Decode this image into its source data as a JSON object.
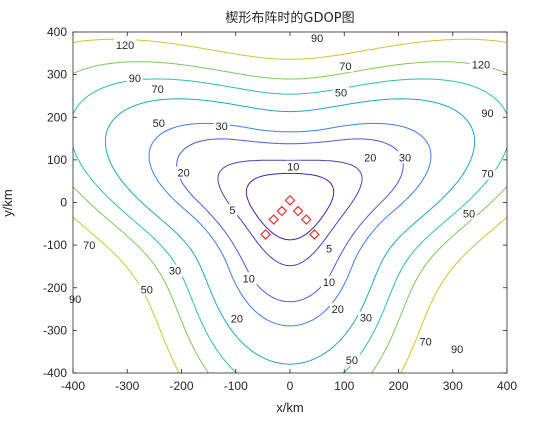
{
  "chart_data": {
    "type": "contour",
    "title": "楔形布阵时的GDOP图",
    "xlabel": "x/km",
    "ylabel": "y/km",
    "xlim": [
      -400,
      400
    ],
    "ylim": [
      -400,
      400
    ],
    "x_ticks": [
      "-400",
      "-300",
      "-200",
      "-100",
      "0",
      "100",
      "200",
      "300",
      "400"
    ],
    "y_ticks": [
      "-400",
      "-300",
      "-200",
      "-100",
      "0",
      "100",
      "200",
      "300",
      "400"
    ],
    "grid": false,
    "legend": "none",
    "levels": [
      5,
      10,
      20,
      30,
      50,
      70,
      90,
      120
    ],
    "level_colors": {
      "5": "#3d24a8",
      "10": "#4a3fc4",
      "20": "#4b5bdb",
      "30": "#3c7fe6",
      "50": "#1fa6c8",
      "70": "#2cc39c",
      "90": "#7cc95a",
      "120": "#c8c830"
    },
    "contour_labels": [
      {
        "text": "5",
        "x": -106,
        "y": -18
      },
      {
        "text": "5",
        "x": 72,
        "y": -108
      },
      {
        "text": "10",
        "x": 6,
        "y": 84
      },
      {
        "text": "10",
        "x": -76,
        "y": -178
      },
      {
        "text": "10",
        "x": 72,
        "y": -186
      },
      {
        "text": "20",
        "x": -196,
        "y": 70
      },
      {
        "text": "20",
        "x": 148,
        "y": 106
      },
      {
        "text": "20",
        "x": -98,
        "y": -272
      },
      {
        "text": "20",
        "x": 88,
        "y": -250
      },
      {
        "text": "30",
        "x": -126,
        "y": 180
      },
      {
        "text": "30",
        "x": 212,
        "y": 106
      },
      {
        "text": "30",
        "x": -212,
        "y": -160
      },
      {
        "text": "30",
        "x": 140,
        "y": -270
      },
      {
        "text": "50",
        "x": -242,
        "y": 186
      },
      {
        "text": "50",
        "x": 94,
        "y": 258
      },
      {
        "text": "50",
        "x": 330,
        "y": -26
      },
      {
        "text": "50",
        "x": -264,
        "y": -204
      },
      {
        "text": "50",
        "x": 114,
        "y": -370
      },
      {
        "text": "70",
        "x": -244,
        "y": 266
      },
      {
        "text": "70",
        "x": 102,
        "y": 320
      },
      {
        "text": "70",
        "x": 364,
        "y": 68
      },
      {
        "text": "70",
        "x": -370,
        "y": -100
      },
      {
        "text": "70",
        "x": 250,
        "y": -326
      },
      {
        "text": "90",
        "x": -286,
        "y": 292
      },
      {
        "text": "90",
        "x": 50,
        "y": 386
      },
      {
        "text": "90",
        "x": 364,
        "y": 210
      },
      {
        "text": "90",
        "x": -396,
        "y": -226
      },
      {
        "text": "90",
        "x": 308,
        "y": -344
      },
      {
        "text": "120",
        "x": -304,
        "y": 370
      },
      {
        "text": "120",
        "x": 352,
        "y": 324
      }
    ],
    "sensors": [
      {
        "x": 0,
        "y": 5
      },
      {
        "x": -15,
        "y": -20
      },
      {
        "x": 15,
        "y": -20
      },
      {
        "x": -30,
        "y": -40
      },
      {
        "x": 30,
        "y": -40
      },
      {
        "x": -45,
        "y": -75
      },
      {
        "x": 45,
        "y": -75
      }
    ],
    "sensor_color": "#e83030"
  }
}
